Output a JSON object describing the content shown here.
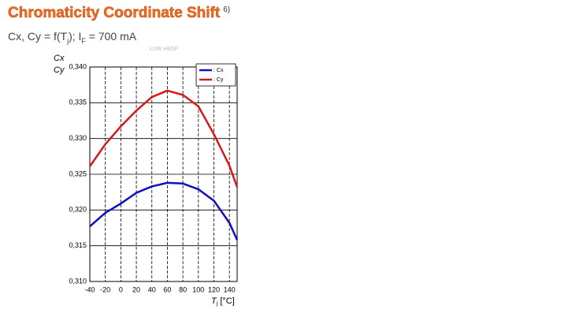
{
  "chart_data": {
    "type": "line",
    "title": "Chromaticity Coordinate Shift",
    "title_note": "6)",
    "subtitle": [
      "Cx, Cy = f(T",
      "j",
      "); I",
      "F",
      " = 700 mA"
    ],
    "watermark": "LUW H9GP",
    "y_label": [
      "Cx",
      "Cy"
    ],
    "x_label": [
      "T",
      "j",
      " [°C]"
    ],
    "x": [
      -40,
      -20,
      0,
      20,
      40,
      60,
      80,
      100,
      120,
      140,
      150
    ],
    "series": [
      {
        "name": ": Cx",
        "color": "#1010c0",
        "values": [
          0.3177,
          0.3196,
          0.3209,
          0.3224,
          0.3233,
          0.3238,
          0.3237,
          0.3229,
          0.3213,
          0.3182,
          0.3158
        ]
      },
      {
        "name": ": Cy",
        "color": "#d81818",
        "values": [
          0.3261,
          0.3292,
          0.3317,
          0.3339,
          0.3358,
          0.3367,
          0.3361,
          0.3345,
          0.3306,
          0.3262,
          0.3232
        ]
      }
    ],
    "xlim": [
      -40,
      150
    ],
    "xticks": [
      -40,
      -20,
      0,
      20,
      40,
      60,
      80,
      100,
      120,
      140
    ],
    "ylim": [
      0.31,
      0.34
    ],
    "yticks": [
      {
        "value": 0.31,
        "label": "0,310"
      },
      {
        "value": 0.315,
        "label": "0,315"
      },
      {
        "value": 0.32,
        "label": "0,320"
      },
      {
        "value": 0.325,
        "label": "0,325"
      },
      {
        "value": 0.33,
        "label": "0,330"
      },
      {
        "value": 0.335,
        "label": "0,335"
      },
      {
        "value": 0.34,
        "label": "0,340"
      }
    ],
    "grid": true,
    "legend": "top-right"
  }
}
